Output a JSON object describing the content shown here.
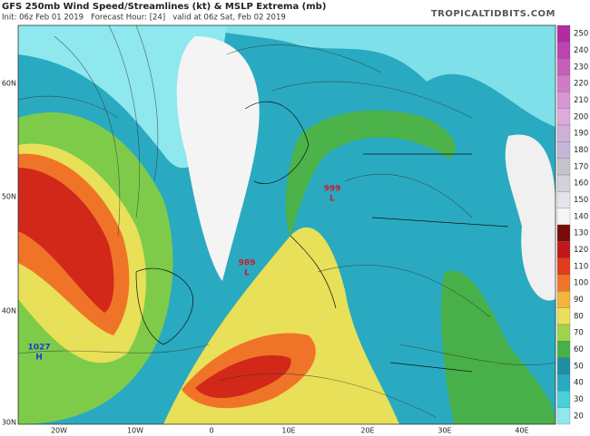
{
  "header": {
    "title": "GFS 250mb Wind Speed/Streamlines (kt) & MSLP Extrema (mb)",
    "subtitle": "Init: 06z Feb 01 2019   Forecast Hour: [24]   valid at 06z Sat, Feb 02 2019",
    "site": "TROPICALTIDBITS.COM"
  },
  "lat_labels": [
    "60N",
    "50N",
    "40N",
    "30N"
  ],
  "lon_labels": [
    "20W",
    "10W",
    "0",
    "10E",
    "20E",
    "30E",
    "40E"
  ],
  "pressure_centers": [
    {
      "value": "1027",
      "type": "H"
    },
    {
      "value": "989",
      "type": "L"
    },
    {
      "value": "999",
      "type": "L"
    }
  ],
  "colorbar": [
    {
      "label": "250",
      "color": "#b02ca0"
    },
    {
      "label": "240",
      "color": "#bb44ae"
    },
    {
      "label": "230",
      "color": "#c55fbb"
    },
    {
      "label": "220",
      "color": "#cf7bc8"
    },
    {
      "label": "210",
      "color": "#d896d3"
    },
    {
      "label": "200",
      "color": "#dcaadb"
    },
    {
      "label": "190",
      "color": "#cdb0d8"
    },
    {
      "label": "180",
      "color": "#c2b7d6"
    },
    {
      "label": "170",
      "color": "#c4c4cc"
    },
    {
      "label": "160",
      "color": "#d2d2d8"
    },
    {
      "label": "150",
      "color": "#e4e4ea"
    },
    {
      "label": "140",
      "color": "#f6f6f8"
    },
    {
      "label": "130",
      "color": "#7a0a0a"
    },
    {
      "label": "120",
      "color": "#c01818"
    },
    {
      "label": "110",
      "color": "#e23a1a"
    },
    {
      "label": "100",
      "color": "#f07428"
    },
    {
      "label": "90",
      "color": "#f6b43a"
    },
    {
      "label": "80",
      "color": "#e8e058"
    },
    {
      "label": "70",
      "color": "#9ed44a"
    },
    {
      "label": "60",
      "color": "#48b048"
    },
    {
      "label": "50",
      "color": "#1f8fa6"
    },
    {
      "label": "40",
      "color": "#27aac2"
    },
    {
      "label": "30",
      "color": "#49d0dc"
    },
    {
      "label": "20",
      "color": "#8ee8ee"
    }
  ]
}
